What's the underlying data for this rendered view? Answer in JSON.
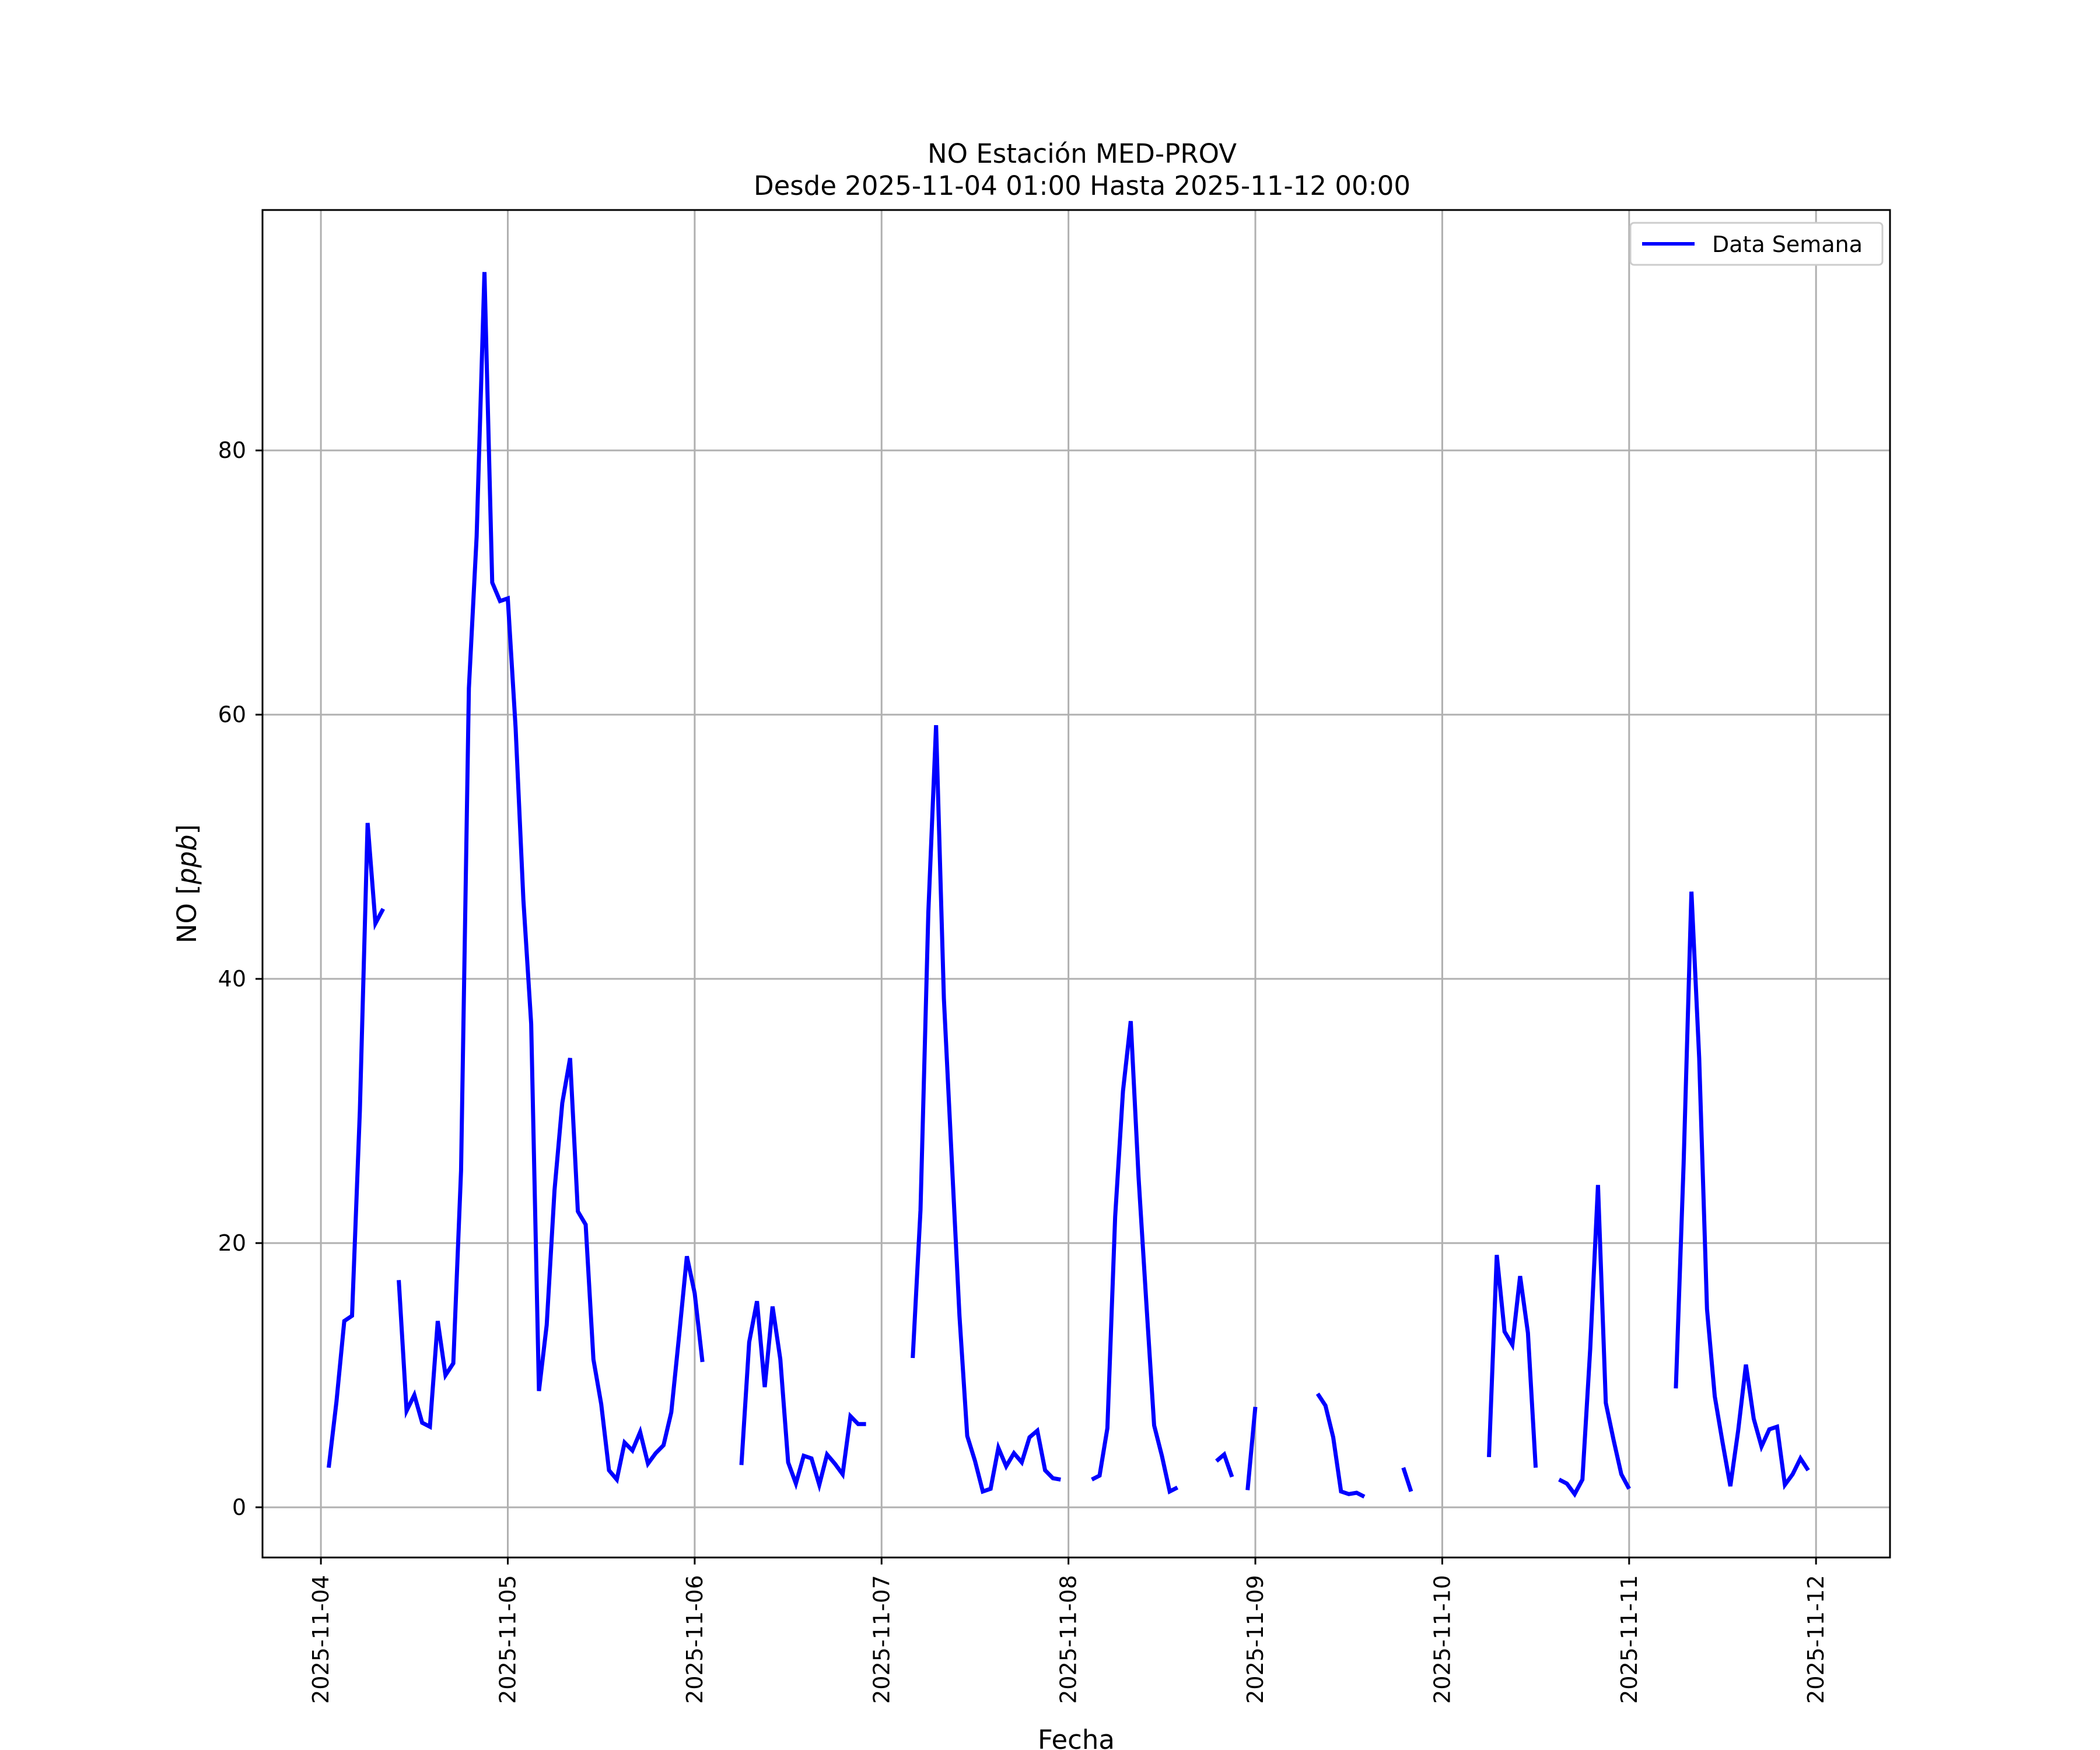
{
  "chart_data": {
    "type": "line",
    "title": "NO Estación MED-PROV",
    "subtitle": "Desde 2025-11-04 01:00 Hasta 2025-11-12 00:00",
    "xlabel": "Fecha",
    "ylabel_text": "NO [",
    "ylabel_unit": "ppb",
    "ylabel_close": "]",
    "xlim": [
      "2025-11-03 16:30",
      "2025-11-12 09:30"
    ],
    "ylim": [
      -3.8,
      98.2
    ],
    "grid": true,
    "legend_position": "upper-right",
    "x_ticks": [
      "2025-11-04",
      "2025-11-05",
      "2025-11-06",
      "2025-11-07",
      "2025-11-08",
      "2025-11-09",
      "2025-11-10",
      "2025-11-11",
      "2025-11-12"
    ],
    "y_ticks": [
      0,
      20,
      40,
      60,
      80
    ],
    "colors": {
      "line": "#0000ff",
      "grid": "#b0b0b0",
      "axes": "#000000"
    },
    "series": [
      {
        "name": "Data Semana",
        "segments": [
          [
            [
              "2025-11-04 01:00",
              3.0
            ],
            [
              "2025-11-04 02:00",
              8.0
            ],
            [
              "2025-11-04 03:00",
              14.1
            ],
            [
              "2025-11-04 04:00",
              14.5
            ],
            [
              "2025-11-04 05:00",
              30.0
            ],
            [
              "2025-11-04 06:00",
              51.8
            ],
            [
              "2025-11-04 07:00",
              44.2
            ],
            [
              "2025-11-04 08:00",
              45.3
            ]
          ],
          [
            [
              "2025-11-04 10:00",
              17.2
            ],
            [
              "2025-11-04 11:00",
              7.3
            ],
            [
              "2025-11-04 12:00",
              8.5
            ],
            [
              "2025-11-04 13:00",
              6.4
            ],
            [
              "2025-11-04 14:00",
              6.1
            ],
            [
              "2025-11-04 15:00",
              14.1
            ],
            [
              "2025-11-04 16:00",
              10.0
            ],
            [
              "2025-11-04 17:00",
              10.9
            ],
            [
              "2025-11-04 18:00",
              25.5
            ],
            [
              "2025-11-04 19:00",
              62.0
            ],
            [
              "2025-11-04 20:00",
              73.5
            ],
            [
              "2025-11-04 21:00",
              93.5
            ],
            [
              "2025-11-04 22:00",
              70.0
            ],
            [
              "2025-11-04 23:00",
              68.6
            ],
            [
              "2025-11-05 00:00",
              68.8
            ],
            [
              "2025-11-05 01:00",
              59.0
            ],
            [
              "2025-11-05 02:00",
              46.0
            ],
            [
              "2025-11-05 03:00",
              36.6
            ],
            [
              "2025-11-05 04:00",
              8.8
            ],
            [
              "2025-11-05 05:00",
              13.8
            ],
            [
              "2025-11-05 06:00",
              24.0
            ],
            [
              "2025-11-05 07:00",
              30.6
            ],
            [
              "2025-11-05 08:00",
              34.0
            ],
            [
              "2025-11-05 09:00",
              22.4
            ],
            [
              "2025-11-05 10:00",
              21.4
            ],
            [
              "2025-11-05 11:00",
              11.2
            ],
            [
              "2025-11-05 12:00",
              7.8
            ],
            [
              "2025-11-05 13:00",
              2.8
            ],
            [
              "2025-11-05 14:00",
              2.1
            ],
            [
              "2025-11-05 15:00",
              4.9
            ],
            [
              "2025-11-05 16:00",
              4.3
            ],
            [
              "2025-11-05 17:00",
              5.7
            ],
            [
              "2025-11-05 18:00",
              3.3
            ],
            [
              "2025-11-05 19:00",
              4.1
            ],
            [
              "2025-11-05 20:00",
              4.7
            ],
            [
              "2025-11-05 21:00",
              7.2
            ],
            [
              "2025-11-05 22:00",
              13.0
            ],
            [
              "2025-11-05 23:00",
              19.0
            ],
            [
              "2025-11-06 00:00",
              16.2
            ],
            [
              "2025-11-06 01:00",
              11.0
            ]
          ],
          [
            [
              "2025-11-06 06:00",
              3.2
            ],
            [
              "2025-11-06 07:00",
              12.5
            ],
            [
              "2025-11-06 08:00",
              15.6
            ],
            [
              "2025-11-06 09:00",
              9.1
            ],
            [
              "2025-11-06 10:00",
              15.2
            ],
            [
              "2025-11-06 11:00",
              11.2
            ],
            [
              "2025-11-06 12:00",
              3.4
            ],
            [
              "2025-11-06 13:00",
              1.8
            ],
            [
              "2025-11-06 14:00",
              3.9
            ],
            [
              "2025-11-06 15:00",
              3.7
            ],
            [
              "2025-11-06 16:00",
              1.7
            ],
            [
              "2025-11-06 17:00",
              4.0
            ],
            [
              "2025-11-06 18:00",
              3.3
            ],
            [
              "2025-11-06 19:00",
              2.5
            ],
            [
              "2025-11-06 20:00",
              6.9
            ],
            [
              "2025-11-06 21:00",
              6.3
            ],
            [
              "2025-11-06 22:00",
              6.3
            ]
          ],
          [
            [
              "2025-11-07 04:00",
              11.3
            ],
            [
              "2025-11-07 05:00",
              22.5
            ],
            [
              "2025-11-07 06:00",
              45.0
            ],
            [
              "2025-11-07 07:00",
              59.2
            ],
            [
              "2025-11-07 08:00",
              38.5
            ],
            [
              "2025-11-07 09:00",
              26.5
            ],
            [
              "2025-11-07 10:00",
              14.5
            ],
            [
              "2025-11-07 11:00",
              5.4
            ],
            [
              "2025-11-07 12:00",
              3.5
            ],
            [
              "2025-11-07 13:00",
              1.2
            ],
            [
              "2025-11-07 14:00",
              1.4
            ],
            [
              "2025-11-07 15:00",
              4.5
            ],
            [
              "2025-11-07 16:00",
              3.1
            ],
            [
              "2025-11-07 17:00",
              4.1
            ],
            [
              "2025-11-07 18:00",
              3.4
            ],
            [
              "2025-11-07 19:00",
              5.3
            ],
            [
              "2025-11-07 20:00",
              5.8
            ],
            [
              "2025-11-07 21:00",
              2.8
            ],
            [
              "2025-11-07 22:00",
              2.2
            ],
            [
              "2025-11-07 23:00",
              2.1
            ]
          ],
          [
            [
              "2025-11-08 03:00",
              2.1
            ],
            [
              "2025-11-08 04:00",
              2.4
            ],
            [
              "2025-11-08 05:00",
              6.0
            ],
            [
              "2025-11-08 06:00",
              22.0
            ],
            [
              "2025-11-08 07:00",
              31.5
            ],
            [
              "2025-11-08 08:00",
              36.8
            ],
            [
              "2025-11-08 09:00",
              25.0
            ],
            [
              "2025-11-08 10:00",
              15.5
            ],
            [
              "2025-11-08 11:00",
              6.2
            ],
            [
              "2025-11-08 12:00",
              3.9
            ],
            [
              "2025-11-08 13:00",
              1.2
            ],
            [
              "2025-11-08 14:00",
              1.5
            ]
          ],
          [
            [
              "2025-11-08 19:00",
              3.5
            ],
            [
              "2025-11-08 20:00",
              4.0
            ],
            [
              "2025-11-08 21:00",
              2.3
            ]
          ],
          [
            [
              "2025-11-08 23:00",
              1.3
            ],
            [
              "2025-11-09 00:00",
              7.6
            ]
          ],
          [
            [
              "2025-11-09 08:00",
              8.6
            ],
            [
              "2025-11-09 09:00",
              7.7
            ],
            [
              "2025-11-09 10:00",
              5.3
            ],
            [
              "2025-11-09 11:00",
              1.2
            ],
            [
              "2025-11-09 12:00",
              1.0
            ],
            [
              "2025-11-09 13:00",
              1.1
            ],
            [
              "2025-11-09 14:00",
              0.8
            ]
          ],
          [
            [
              "2025-11-09 19:00",
              3.0
            ],
            [
              "2025-11-09 20:00",
              1.2
            ]
          ],
          [
            [
              "2025-11-10 06:00",
              3.8
            ],
            [
              "2025-11-10 07:00",
              19.1
            ],
            [
              "2025-11-10 08:00",
              13.3
            ],
            [
              "2025-11-10 09:00",
              12.3
            ],
            [
              "2025-11-10 10:00",
              17.5
            ],
            [
              "2025-11-10 11:00",
              13.2
            ],
            [
              "2025-11-10 12:00",
              3.0
            ]
          ],
          [
            [
              "2025-11-10 15:00",
              2.1
            ],
            [
              "2025-11-10 16:00",
              1.8
            ],
            [
              "2025-11-10 17:00",
              1.0
            ],
            [
              "2025-11-10 18:00",
              2.1
            ],
            [
              "2025-11-10 19:00",
              12.0
            ],
            [
              "2025-11-10 20:00",
              24.4
            ],
            [
              "2025-11-10 21:00",
              7.9
            ],
            [
              "2025-11-10 22:00",
              5.1
            ],
            [
              "2025-11-10 23:00",
              2.5
            ],
            [
              "2025-11-11 00:00",
              1.4
            ]
          ],
          [
            [
              "2025-11-11 06:00",
              9.0
            ],
            [
              "2025-11-11 07:00",
              26.0
            ],
            [
              "2025-11-11 08:00",
              46.6
            ],
            [
              "2025-11-11 09:00",
              34.0
            ],
            [
              "2025-11-11 10:00",
              15.0
            ],
            [
              "2025-11-11 11:00",
              8.4
            ],
            [
              "2025-11-11 12:00",
              4.9
            ],
            [
              "2025-11-11 13:00",
              1.6
            ],
            [
              "2025-11-11 14:00",
              5.8
            ],
            [
              "2025-11-11 15:00",
              10.8
            ],
            [
              "2025-11-11 16:00",
              6.7
            ],
            [
              "2025-11-11 17:00",
              4.6
            ],
            [
              "2025-11-11 18:00",
              5.9
            ],
            [
              "2025-11-11 19:00",
              6.1
            ],
            [
              "2025-11-11 20:00",
              1.7
            ],
            [
              "2025-11-11 21:00",
              2.5
            ],
            [
              "2025-11-11 22:00",
              3.7
            ],
            [
              "2025-11-11 23:00",
              2.8
            ]
          ]
        ]
      }
    ]
  }
}
